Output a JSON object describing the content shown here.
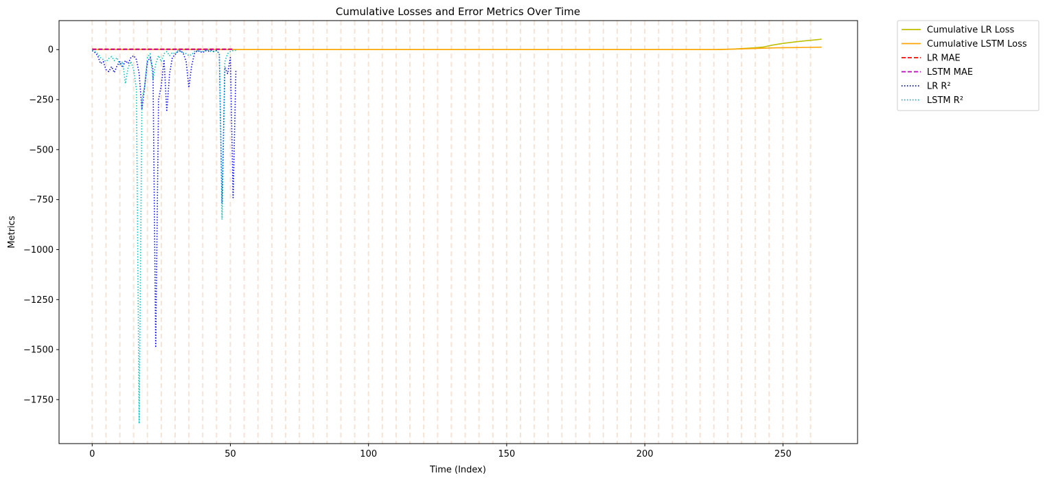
{
  "chart_data": {
    "type": "line",
    "title": "Cumulative Losses and Error Metrics Over Time",
    "xlabel": "Time (Index)",
    "ylabel": "Metrics",
    "xlim": [
      -12,
      277
    ],
    "ylim": [
      -1970,
      145
    ],
    "xticks": [
      0,
      50,
      100,
      150,
      200,
      250
    ],
    "yticks": [
      0,
      -250,
      -500,
      -750,
      -1000,
      -1250,
      -1500,
      -1750
    ],
    "ytick_labels": [
      "0",
      "−250",
      "−500",
      "−750",
      "−1000",
      "−1250",
      "−1500",
      "−1750"
    ],
    "legend_position": "outside-top-right",
    "vlines": {
      "x": [
        0,
        5,
        10,
        15,
        20,
        25,
        30,
        35,
        40,
        45,
        50,
        55,
        60,
        65,
        70,
        75,
        80,
        85,
        90,
        95,
        100,
        105,
        110,
        115,
        120,
        125,
        130,
        135,
        140,
        145,
        150,
        155,
        160,
        165,
        170,
        175,
        180,
        185,
        190,
        195,
        200,
        205,
        210,
        215,
        220,
        225,
        230,
        235,
        240,
        245,
        250,
        255,
        260
      ],
      "color": "#f5e3d6",
      "style": "dashed"
    },
    "series": [
      {
        "name": "Cumulative LR Loss",
        "color": "#bfbf00",
        "style": "solid",
        "x": [
          0,
          100,
          200,
          225,
          228,
          232,
          236,
          240,
          243,
          246,
          250,
          254,
          258,
          261,
          264
        ],
        "y": [
          0,
          0,
          0,
          0,
          1,
          3,
          6,
          9,
          13,
          22,
          31,
          38,
          44,
          48,
          52
        ]
      },
      {
        "name": "Cumulative LSTM Loss",
        "color": "#ffa500",
        "style": "solid",
        "x": [
          0,
          100,
          200,
          226,
          232,
          238,
          243,
          248,
          254,
          259,
          264
        ],
        "y": [
          0,
          0,
          0,
          0,
          2,
          5,
          7,
          9,
          10,
          11,
          12
        ]
      },
      {
        "name": "LR MAE",
        "color": "#ff0000",
        "style": "dashed",
        "x": [
          0,
          10,
          20,
          30,
          40,
          50,
          51
        ],
        "y": [
          3,
          3,
          3,
          3,
          3,
          3,
          3
        ]
      },
      {
        "name": "LSTM MAE",
        "color": "#bf00bf",
        "style": "dashed",
        "x": [
          0,
          10,
          20,
          30,
          40,
          50,
          51
        ],
        "y": [
          1,
          1,
          1,
          1,
          1,
          1,
          1
        ]
      },
      {
        "name": "LR R²",
        "color": "#0000ff",
        "style": "dotted",
        "x": [
          0,
          1,
          2,
          3,
          4,
          5,
          6,
          7,
          8,
          9,
          10,
          11,
          12,
          13,
          14,
          15,
          16,
          17,
          18,
          19,
          20,
          21,
          22,
          23,
          24,
          25,
          26,
          27,
          28,
          29,
          30,
          31,
          32,
          33,
          34,
          35,
          36,
          37,
          38,
          39,
          40,
          41,
          42,
          43,
          44,
          45,
          46,
          47,
          48,
          49,
          50,
          51,
          52
        ],
        "y": [
          -5,
          -15,
          -30,
          -70,
          -60,
          -100,
          -110,
          -85,
          -115,
          -80,
          -60,
          -90,
          -55,
          -70,
          -40,
          -30,
          -50,
          -120,
          -300,
          -180,
          -60,
          -40,
          -100,
          -1490,
          -250,
          -180,
          -50,
          -310,
          -120,
          -40,
          -25,
          -10,
          -5,
          -20,
          -60,
          -190,
          -80,
          -20,
          -5,
          -10,
          -15,
          -5,
          -8,
          -3,
          -10,
          -5,
          -20,
          -770,
          -90,
          -120,
          -40,
          -740,
          -100
        ]
      },
      {
        "name": "LSTM R²",
        "color": "#00bfbf",
        "style": "dotted",
        "x": [
          0,
          1,
          2,
          3,
          4,
          5,
          6,
          7,
          8,
          9,
          10,
          11,
          12,
          13,
          14,
          15,
          16,
          17,
          18,
          19,
          20,
          21,
          22,
          23,
          24,
          25,
          26,
          27,
          28,
          29,
          30,
          31,
          32,
          33,
          34,
          35,
          36,
          37,
          38,
          39,
          40,
          41,
          42,
          43,
          44,
          45,
          46,
          47,
          48,
          49,
          50,
          51,
          52
        ],
        "y": [
          -3,
          -10,
          -20,
          -40,
          -50,
          -60,
          -45,
          -35,
          -55,
          -40,
          -80,
          -60,
          -170,
          -90,
          -60,
          -100,
          -200,
          -1870,
          -250,
          -180,
          -40,
          -20,
          -150,
          -70,
          -30,
          -60,
          -20,
          -10,
          -30,
          -15,
          -20,
          -5,
          -10,
          -15,
          -20,
          -30,
          -25,
          -10,
          -5,
          -8,
          -10,
          -5,
          -3,
          -10,
          -8,
          -5,
          -20,
          -850,
          -60,
          -20,
          -10,
          -5,
          -3
        ]
      }
    ]
  }
}
